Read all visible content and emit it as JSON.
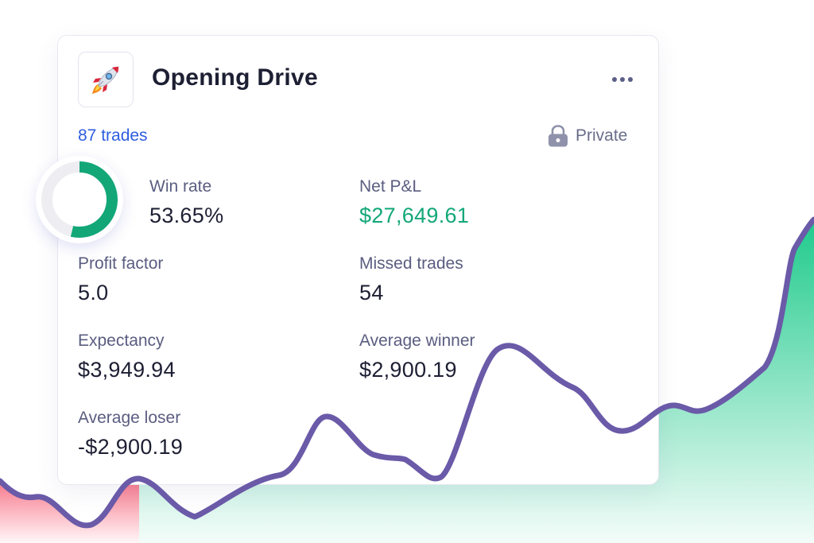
{
  "strategy": {
    "name": "Opening Drive",
    "icon": "rocket-icon",
    "trades_label": "87 trades",
    "visibility_label": "Private",
    "win_rate_fraction": 0.5365
  },
  "stats": {
    "win_rate": {
      "label": "Win rate",
      "value": "53.65%"
    },
    "net_pnl": {
      "label": "Net P&L",
      "value": "$27,649.61"
    },
    "profit_factor": {
      "label": "Profit factor",
      "value": "5.0"
    },
    "missed_trades": {
      "label": "Missed trades",
      "value": "54"
    },
    "expectancy": {
      "label": "Expectancy",
      "value": "$3,949.94"
    },
    "average_winner": {
      "label": "Average winner",
      "value": "$2,900.19"
    },
    "average_loser": {
      "label": "Average loser",
      "value": "-$2,900.19"
    }
  },
  "colors": {
    "accent_blue": "#2f5de0",
    "profit_green": "#13a778",
    "line_purple": "#6a5aa8",
    "donut_track": "#eeeef2"
  }
}
